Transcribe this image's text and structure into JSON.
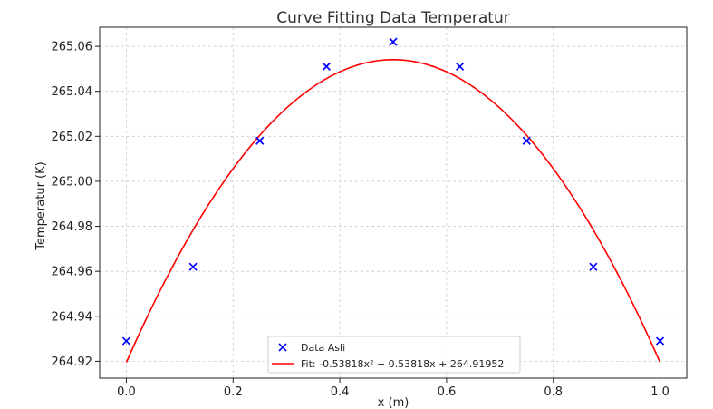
{
  "chart_data": {
    "type": "scatter",
    "title": "Curve Fitting Data Temperatur",
    "xlabel": "x (m)",
    "ylabel": "Temperatur (K)",
    "xlim": [
      -0.05,
      1.05
    ],
    "ylim": [
      264.9125,
      265.0685
    ],
    "x_ticks": [
      0.0,
      0.2,
      0.4,
      0.6,
      0.8,
      1.0
    ],
    "x_tick_labels": [
      "0.0",
      "0.2",
      "0.4",
      "0.6",
      "0.8",
      "1.0"
    ],
    "y_ticks": [
      264.92,
      264.94,
      264.96,
      264.98,
      265.0,
      265.02,
      265.04,
      265.06
    ],
    "y_tick_labels": [
      "264.92",
      "264.94",
      "264.96",
      "264.98",
      "265.00",
      "265.02",
      "265.04",
      "265.06"
    ],
    "grid": true,
    "legend_position": "lower-center",
    "series": [
      {
        "name": "Data Asli",
        "kind": "scatter",
        "marker": "x",
        "color": "#0000ff",
        "x": [
          0.0,
          0.125,
          0.25,
          0.375,
          0.5,
          0.625,
          0.75,
          0.875,
          1.0
        ],
        "y": [
          264.929,
          264.962,
          265.018,
          265.051,
          265.062,
          265.051,
          265.018,
          264.962,
          264.929
        ]
      },
      {
        "name": "Fit: -0.53818x² + 0.53818x + 264.91952",
        "kind": "line",
        "color": "#ff0000",
        "coefficients": [
          -0.53818,
          0.53818,
          264.91952
        ],
        "x_range": [
          0.0,
          1.0
        ]
      }
    ]
  }
}
